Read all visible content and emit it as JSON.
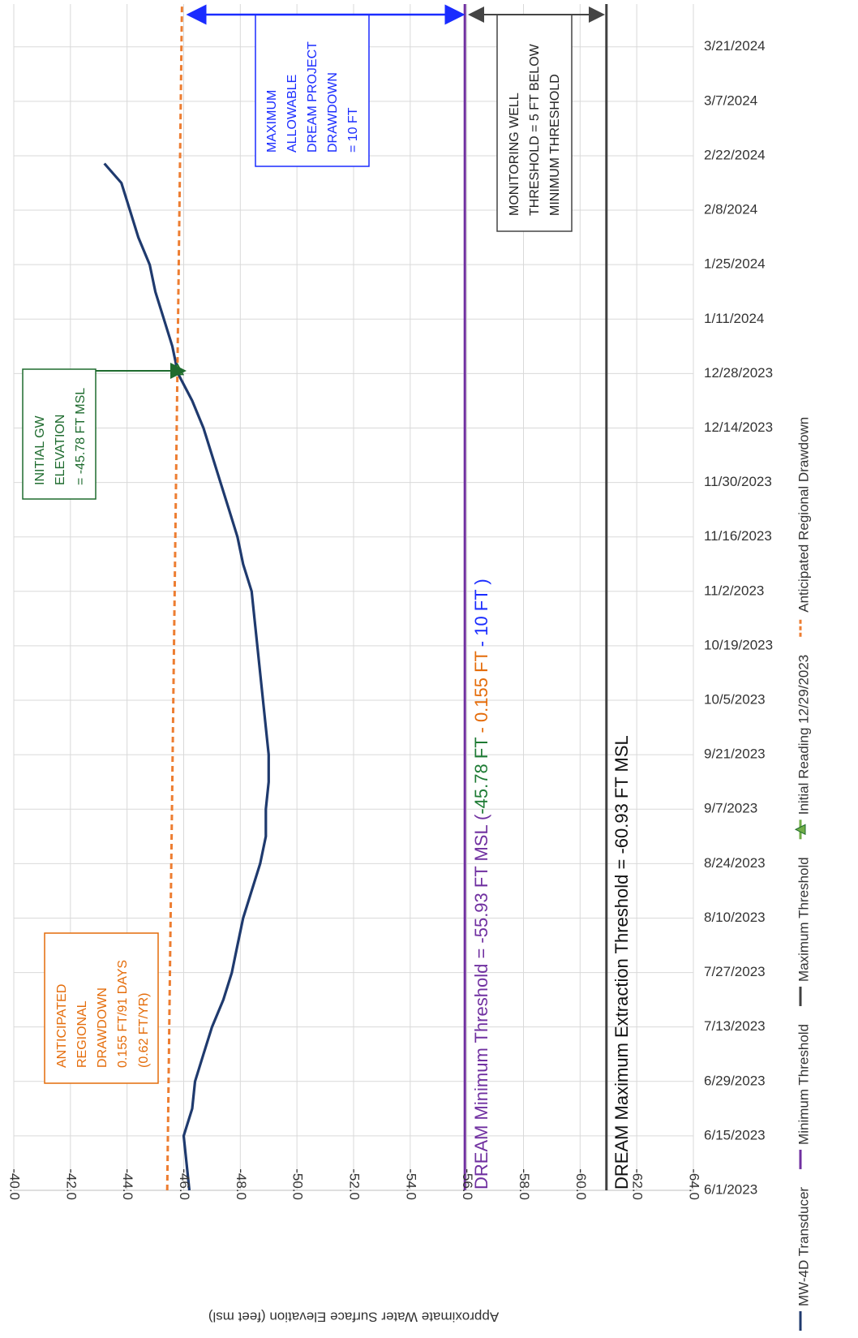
{
  "chart_data": {
    "type": "line",
    "y_label": "Approximate Water Surface Elevation (feet msl)",
    "ylim": [
      -40,
      -64
    ],
    "yticks": [
      {
        "value": -40,
        "label": "-40.0"
      },
      {
        "value": -42,
        "label": "-42.0"
      },
      {
        "value": -44,
        "label": "-44.0"
      },
      {
        "value": -46,
        "label": "-46.0"
      },
      {
        "value": -48,
        "label": "-48.0"
      },
      {
        "value": -50,
        "label": "-50.0"
      },
      {
        "value": -52,
        "label": "-52.0"
      },
      {
        "value": -54,
        "label": "-54.0"
      },
      {
        "value": -56,
        "label": "-56.0"
      },
      {
        "value": -58,
        "label": "-58.0"
      },
      {
        "value": -60,
        "label": "-60.0"
      },
      {
        "value": -62,
        "label": "-62.0"
      },
      {
        "value": -64,
        "label": "-64.0"
      }
    ],
    "xlim": [
      "6/1/2023",
      "4/1/2024"
    ],
    "xticks": [
      "6/1/2023",
      "6/15/2023",
      "6/29/2023",
      "7/13/2023",
      "7/27/2023",
      "8/10/2023",
      "8/24/2023",
      "9/7/2023",
      "9/21/2023",
      "10/5/2023",
      "10/19/2023",
      "11/2/2023",
      "11/16/2023",
      "11/30/2023",
      "12/14/2023",
      "12/28/2023",
      "1/11/2024",
      "1/25/2024",
      "2/8/2024",
      "2/22/2024",
      "3/7/2024",
      "3/21/2024"
    ],
    "grid": true,
    "legend": "right",
    "series": [
      {
        "name": "MW-4D Transducer",
        "color": "#1f3a6e",
        "x": [
          "6/1/2023",
          "6/8/2023",
          "6/15/2023",
          "6/22/2023",
          "6/29/2023",
          "7/6/2023",
          "7/13/2023",
          "7/20/2023",
          "7/27/2023",
          "8/3/2023",
          "8/10/2023",
          "8/17/2023",
          "8/24/2023",
          "8/31/2023",
          "9/7/2023",
          "9/14/2023",
          "9/21/2023",
          "9/28/2023",
          "10/5/2023",
          "10/12/2023",
          "10/19/2023",
          "10/26/2023",
          "11/2/2023",
          "11/9/2023",
          "11/16/2023",
          "11/23/2023",
          "11/30/2023",
          "12/7/2023",
          "12/14/2023",
          "12/21/2023",
          "12/28/2023",
          "1/4/2024",
          "1/11/2024",
          "1/18/2024",
          "1/25/2024",
          "2/1/2024",
          "2/8/2024",
          "2/15/2024",
          "2/20/2024"
        ],
        "values": [
          -46.2,
          -46.1,
          -46.0,
          -46.3,
          -46.4,
          -46.7,
          -47.0,
          -47.4,
          -47.7,
          -47.9,
          -48.1,
          -48.4,
          -48.7,
          -48.9,
          -48.9,
          -49.0,
          -49.0,
          -48.9,
          -48.8,
          -48.7,
          -48.6,
          -48.5,
          -48.4,
          -48.1,
          -47.9,
          -47.6,
          -47.3,
          -47.0,
          -46.7,
          -46.3,
          -45.8,
          -45.6,
          -45.3,
          -45.0,
          -44.8,
          -44.4,
          -44.1,
          -43.8,
          -43.2
        ]
      },
      {
        "name": "Minimum Threshold",
        "color": "#7030a0",
        "x": [
          "6/1/2023",
          "4/1/2024"
        ],
        "values": [
          -55.93,
          -55.93
        ]
      },
      {
        "name": "Maximum Threshold",
        "color": "#404040",
        "x": [
          "6/1/2023",
          "4/1/2024"
        ],
        "values": [
          -60.93,
          -60.93
        ]
      },
      {
        "name": "Initial Reading 12/29/2023",
        "color": "#70ad47",
        "marker": "triangle",
        "x": [
          "12/29/2023"
        ],
        "values": [
          -45.78
        ]
      },
      {
        "name": "Anticipated Regional Drawdown",
        "color": "#ed7d31",
        "dashed": true,
        "x": [
          "6/1/2023",
          "4/1/2024"
        ],
        "values": [
          -45.42,
          -45.94
        ]
      }
    ],
    "annotations": {
      "regional": [
        "ANTICIPATED",
        "REGIONAL",
        "DRAWDOWN",
        "0.155 FT/91 DAYS",
        "(0.62 FT/YR)"
      ],
      "initial": [
        "INITIAL GW",
        "ELEVATION",
        "= -45.78 FT MSL"
      ],
      "allowable": [
        "MAXIMUM",
        "ALLOWABLE",
        "DREAM PROJECT",
        "DRAWDOWN",
        "= 10 FT"
      ],
      "monitoring": [
        "MONITORING WELL",
        "THRESHOLD = 5 FT BELOW",
        "MINIMUM THRESHOLD"
      ],
      "min_label": [
        "DREAM Minimum Threshold = -55.93 FT MSL (",
        "-45.78 FT",
        "- 0.155 FT",
        "- 10 FT )"
      ],
      "max_label": "DREAM Maximum Extraction Threshold = -60.93 FT MSL"
    }
  }
}
